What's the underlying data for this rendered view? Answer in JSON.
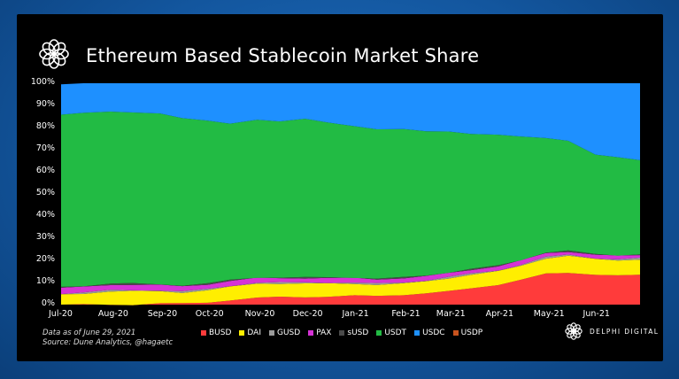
{
  "header": {
    "title": "Ethereum Based Stablecoin Market Share",
    "logo_icon": "delphi-flower-logo-icon"
  },
  "footer": {
    "note_line1": "Data as of June 29, 2021",
    "note_line2": "Source: Dune Analytics, @hagaetc",
    "brand": "DELPHI DIGITAL",
    "brand_icon": "delphi-flower-logo-icon"
  },
  "chart_data": {
    "type": "area",
    "stacked": true,
    "normalized_percent": true,
    "title": "Ethereum Based Stablecoin Market Share",
    "xlabel": "",
    "ylabel": "",
    "ylim": [
      0,
      100
    ],
    "y_ticks": [
      "0%",
      "10%",
      "20%",
      "30%",
      "40%",
      "50%",
      "60%",
      "70%",
      "80%",
      "90%",
      "100%"
    ],
    "x_ticks": [
      "Jul-20",
      "Aug-20",
      "Sep-20",
      "Oct-20",
      "Nov-20",
      "Dec-20",
      "Jan-21",
      "Feb-21",
      "Mar-21",
      "Apr-21",
      "May-21",
      "Jun-21"
    ],
    "x": [
      "2020-07-01",
      "2020-07-15",
      "2020-08-01",
      "2020-08-15",
      "2020-09-01",
      "2020-09-15",
      "2020-10-01",
      "2020-10-15",
      "2020-11-01",
      "2020-11-15",
      "2020-12-01",
      "2020-12-15",
      "2021-01-01",
      "2021-01-15",
      "2021-02-01",
      "2021-02-15",
      "2021-03-01",
      "2021-03-15",
      "2021-04-01",
      "2021-04-15",
      "2021-05-01",
      "2021-05-15",
      "2021-06-01",
      "2021-06-15",
      "2021-06-29"
    ],
    "legend_position": "bottom",
    "grid": false,
    "series": [
      {
        "name": "BUSD",
        "color": "#ff3b3b",
        "values": [
          0,
          0,
          0,
          0,
          0.5,
          0.5,
          1,
          2,
          3,
          3.5,
          3.5,
          3.5,
          4,
          4,
          4.5,
          5,
          6,
          7.5,
          9,
          11,
          14,
          14.5,
          13.5,
          13,
          13.5
        ]
      },
      {
        "name": "DAI",
        "color": "#ffee00",
        "values": [
          4.5,
          5,
          6,
          6,
          5.5,
          5,
          5.5,
          6,
          6.5,
          6,
          6,
          6,
          5.5,
          5,
          5,
          5.5,
          6,
          6,
          6,
          6.5,
          7,
          7.5,
          7,
          7,
          7
        ]
      },
      {
        "name": "GUSD",
        "color": "#9a9a9a",
        "values": [
          0.5,
          0.5,
          0.5,
          0.5,
          0.5,
          0.5,
          0.5,
          0.5,
          0.5,
          0.5,
          0.5,
          0.5,
          0.5,
          0.5,
          0.5,
          0.5,
          0.5,
          0.5,
          0.5,
          0.5,
          0.5,
          0.5,
          0.5,
          0.5,
          0.5
        ]
      },
      {
        "name": "PAX",
        "color": "#d632d6",
        "values": [
          2.5,
          2.5,
          2.5,
          2.5,
          2.3,
          2.3,
          2.2,
          2.2,
          2,
          2,
          2,
          2,
          2,
          2,
          2,
          1.8,
          1.8,
          1.8,
          1.8,
          1.8,
          1.8,
          1.5,
          1.5,
          1.5,
          1.5
        ]
      },
      {
        "name": "sUSD",
        "color": "#4a4a4a",
        "values": [
          0.5,
          0.5,
          0.5,
          0.5,
          0.4,
          0.4,
          0.4,
          0.4,
          0.3,
          0.3,
          0.3,
          0.3,
          0.3,
          0.3,
          0.3,
          0.3,
          0.3,
          0.3,
          0.3,
          0.3,
          0.3,
          0.3,
          0.3,
          0.3,
          0.3
        ]
      },
      {
        "name": "USDT",
        "color": "#22bb44",
        "values": [
          78,
          78,
          77.5,
          77.5,
          77.3,
          75.3,
          73.4,
          70.9,
          71.2,
          70.2,
          71.7,
          70.2,
          68.2,
          67.2,
          67.2,
          65.4,
          63.4,
          60.9,
          59.4,
          55.9,
          51.4,
          49.7,
          45.2,
          44.2,
          42.2
        ]
      },
      {
        "name": "USDC",
        "color": "#1e90ff",
        "values": [
          13.5,
          13.5,
          13,
          13,
          13.5,
          16,
          17,
          18,
          16.5,
          17.5,
          16,
          17.5,
          19.5,
          21,
          20.5,
          21.5,
          22,
          23,
          23,
          24,
          25,
          26,
          32,
          33.5,
          35
        ]
      },
      {
        "name": "USDP",
        "color": "#c8531e",
        "values": [
          0,
          0,
          0,
          0,
          0,
          0,
          0,
          0,
          0,
          0,
          0,
          0,
          0,
          0,
          0,
          0,
          0,
          0,
          0,
          0,
          0,
          0,
          0,
          0,
          0
        ]
      }
    ]
  }
}
